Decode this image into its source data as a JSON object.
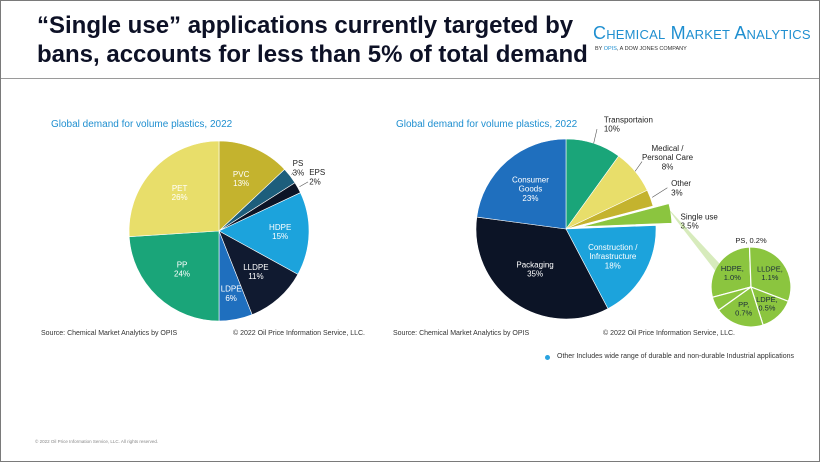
{
  "title": "“Single use” applications currently targeted by bans, accounts for less than 5% of total demand",
  "brand": {
    "name": "Chemical Market Analytics",
    "by": "BY ",
    "opis": "OPIS",
    "company": ", A DOW JONES COMPANY"
  },
  "chart_data": [
    {
      "type": "pie",
      "title": "Global demand for volume plastics, 2022",
      "categories": [
        "PVC",
        "PS",
        "EPS",
        "HDPE",
        "LLDPE",
        "LDPE",
        "PP",
        "PET"
      ],
      "values": [
        13,
        3,
        2,
        15,
        11,
        6,
        24,
        26
      ],
      "labels": [
        "13%",
        "3%",
        "2%",
        "15%",
        "11%",
        "6%",
        "24%",
        "26%"
      ],
      "colors": [
        "#c4b32e",
        "#1d5e7c",
        "#0c1426",
        "#1ca3dc",
        "#101a30",
        "#1f6fbe",
        "#1aa579",
        "#e8de6a"
      ],
      "source": "Source: Chemical Market Analytics by OPIS",
      "copyright": "© 2022 Oil Price Information Service, LLC."
    },
    {
      "type": "pie",
      "title": "Global demand for volume plastics, 2022",
      "categories": [
        "Transportaion",
        "Medical / Personal Care",
        "Other",
        "Single use",
        "Construction / Infrastructure",
        "Packaging",
        "Consumer Goods"
      ],
      "values": [
        10,
        8,
        3,
        3.5,
        18,
        35,
        23
      ],
      "labels": [
        "10%",
        "8%",
        "3%",
        "3.5%",
        "18%",
        "35%",
        "23%"
      ],
      "colors": [
        "#1aa579",
        "#e8de6a",
        "#c4b32e",
        "#8bc53f",
        "#1ca3dc",
        "#0c1426",
        "#1f6fbe"
      ],
      "source": "Source: Chemical Market Analytics by OPIS",
      "copyright": "© 2022 Oil Price Information Service, LLC.",
      "breakout": {
        "categories": [
          "HDPE",
          "LLDPE",
          "LDPE",
          "PP",
          "PS"
        ],
        "values": [
          1.0,
          1.1,
          0.5,
          0.7,
          0.2
        ],
        "labels": [
          "1.0%",
          "1.1%",
          "0.5%",
          "0.7%",
          "0.2%"
        ],
        "color": "#8bc53f",
        "ps_label": "PS, 0.2%"
      }
    }
  ],
  "note": "Other Includes wide range of durable and non-durable Industrial applications",
  "footer": "© 2022 Oil Price Information Service, LLC. All rights reserved."
}
